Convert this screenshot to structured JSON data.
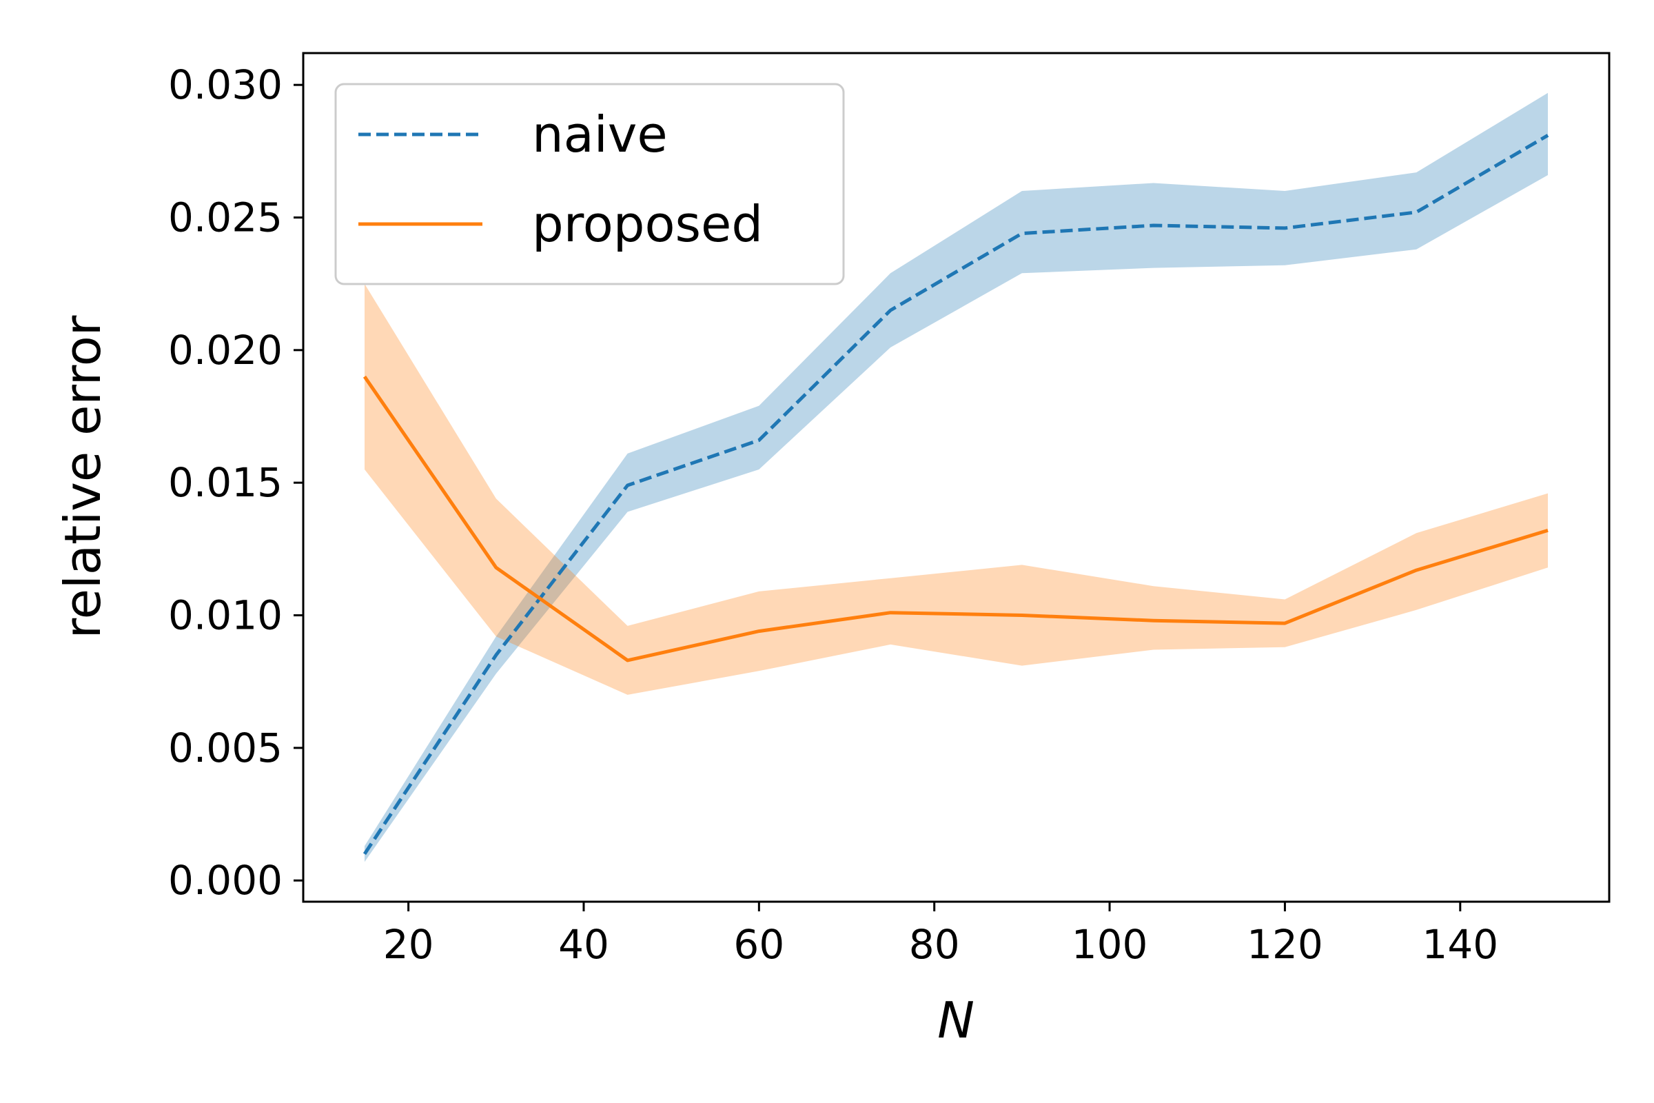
{
  "chart_data": {
    "type": "line",
    "title": "",
    "xlabel": "N",
    "ylabel": "relative error",
    "xlim": [
      8,
      157
    ],
    "ylim": [
      -0.0008,
      0.0312
    ],
    "xticks": [
      20,
      40,
      60,
      80,
      100,
      120,
      140
    ],
    "yticks": [
      0.0,
      0.005,
      0.01,
      0.015,
      0.02,
      0.025,
      0.03
    ],
    "ytick_labels": [
      "0.000",
      "0.005",
      "0.010",
      "0.015",
      "0.020",
      "0.025",
      "0.030"
    ],
    "grid": false,
    "legend_position": "top-left",
    "x": [
      15,
      30,
      45,
      60,
      75,
      90,
      105,
      120,
      135,
      150
    ],
    "series": [
      {
        "name": "naive",
        "style": "dashed",
        "color": "#1f77b4",
        "band_color": "#1f77b4",
        "values": [
          0.001,
          0.0085,
          0.0149,
          0.0166,
          0.0215,
          0.0244,
          0.0247,
          0.0246,
          0.0252,
          0.0281
        ],
        "lower": [
          0.0007,
          0.0078,
          0.0139,
          0.0155,
          0.0201,
          0.0229,
          0.0231,
          0.0232,
          0.0238,
          0.0266
        ],
        "upper": [
          0.0013,
          0.0092,
          0.0161,
          0.0179,
          0.0229,
          0.026,
          0.0263,
          0.026,
          0.0267,
          0.0297
        ]
      },
      {
        "name": "proposed",
        "style": "solid",
        "color": "#ff7f0e",
        "band_color": "#ff7f0e",
        "values": [
          0.019,
          0.0118,
          0.0083,
          0.0094,
          0.0101,
          0.01,
          0.0098,
          0.0097,
          0.0117,
          0.0132
        ],
        "lower": [
          0.0155,
          0.0092,
          0.007,
          0.0079,
          0.0089,
          0.0081,
          0.0087,
          0.0088,
          0.0102,
          0.0118
        ],
        "upper": [
          0.0225,
          0.0144,
          0.0096,
          0.0109,
          0.0114,
          0.0119,
          0.0111,
          0.0106,
          0.0131,
          0.0146
        ]
      }
    ]
  }
}
